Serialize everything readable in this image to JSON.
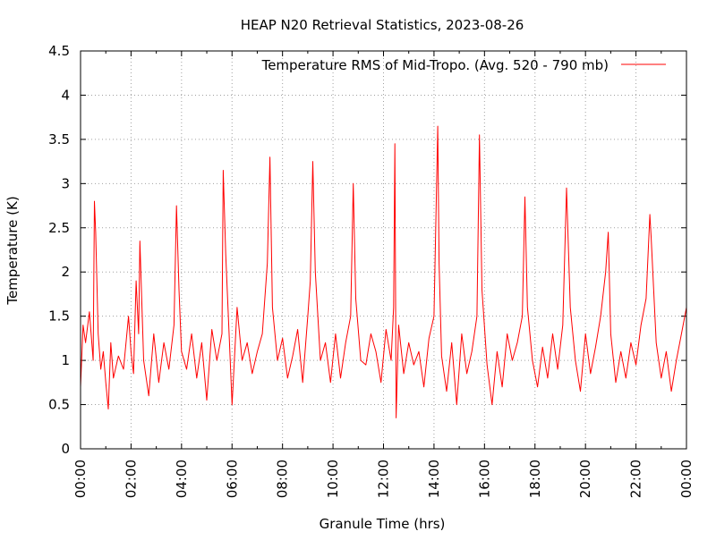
{
  "chart_data": {
    "type": "line",
    "title": "HEAP N20 Retrieval Statistics, 2023-08-26",
    "xlabel": "Granule Time (hrs)",
    "ylabel": "Temperature (K)",
    "xlim": [
      0,
      24
    ],
    "ylim": [
      0,
      4.5
    ],
    "grid": true,
    "legend_position": "top-right",
    "x_ticks": [
      "00:00",
      "02:00",
      "04:00",
      "06:00",
      "08:00",
      "10:00",
      "12:00",
      "14:00",
      "16:00",
      "18:00",
      "20:00",
      "22:00",
      "00:00"
    ],
    "y_ticks": [
      "0",
      "0.5",
      "1",
      "1.5",
      "2",
      "2.5",
      "3",
      "3.5",
      "4",
      "4.5"
    ],
    "series": [
      {
        "name": "Temperature RMS of Mid-Tropo. (Avg. 520 - 790 mb)",
        "color": "#ff0000",
        "x": [
          0.0,
          0.1,
          0.2,
          0.35,
          0.5,
          0.55,
          0.6,
          0.7,
          0.8,
          0.9,
          1.0,
          1.1,
          1.2,
          1.3,
          1.5,
          1.7,
          1.9,
          2.0,
          2.1,
          2.2,
          2.3,
          2.35,
          2.5,
          2.7,
          2.9,
          3.1,
          3.3,
          3.5,
          3.7,
          3.8,
          3.9,
          4.0,
          4.2,
          4.4,
          4.6,
          4.8,
          5.0,
          5.2,
          5.4,
          5.6,
          5.65,
          5.75,
          5.9,
          6.0,
          6.2,
          6.4,
          6.6,
          6.8,
          7.0,
          7.2,
          7.4,
          7.5,
          7.6,
          7.8,
          8.0,
          8.2,
          8.4,
          8.6,
          8.8,
          9.0,
          9.1,
          9.2,
          9.3,
          9.5,
          9.7,
          9.9,
          10.1,
          10.3,
          10.5,
          10.7,
          10.8,
          10.9,
          11.1,
          11.3,
          11.5,
          11.7,
          11.9,
          12.1,
          12.3,
          12.4,
          12.45,
          12.5,
          12.6,
          12.8,
          13.0,
          13.2,
          13.4,
          13.6,
          13.8,
          14.0,
          14.15,
          14.2,
          14.3,
          14.5,
          14.7,
          14.9,
          15.1,
          15.3,
          15.5,
          15.7,
          15.8,
          15.9,
          16.1,
          16.3,
          16.5,
          16.7,
          16.9,
          17.1,
          17.3,
          17.5,
          17.6,
          17.7,
          17.9,
          18.1,
          18.3,
          18.5,
          18.7,
          18.9,
          19.1,
          19.25,
          19.4,
          19.6,
          19.8,
          20.0,
          20.2,
          20.4,
          20.6,
          20.8,
          20.9,
          21.0,
          21.2,
          21.4,
          21.6,
          21.8,
          22.0,
          22.2,
          22.4,
          22.55,
          22.6,
          22.8,
          23.0,
          23.2,
          23.4,
          23.6,
          23.8,
          24.0
        ],
        "y": [
          0.7,
          1.4,
          1.2,
          1.55,
          1.0,
          2.8,
          2.45,
          1.3,
          0.9,
          1.1,
          0.75,
          0.45,
          1.2,
          0.8,
          1.05,
          0.9,
          1.5,
          1.1,
          0.85,
          1.9,
          1.3,
          2.35,
          1.0,
          0.6,
          1.3,
          0.75,
          1.2,
          0.9,
          1.4,
          2.75,
          1.8,
          1.1,
          0.9,
          1.3,
          0.8,
          1.2,
          0.55,
          1.35,
          1.0,
          1.3,
          3.15,
          2.2,
          1.2,
          0.5,
          1.6,
          1.0,
          1.2,
          0.85,
          1.1,
          1.3,
          2.1,
          3.3,
          1.6,
          1.0,
          1.25,
          0.8,
          1.05,
          1.35,
          0.75,
          1.5,
          1.9,
          3.25,
          2.0,
          1.0,
          1.2,
          0.75,
          1.3,
          0.8,
          1.2,
          1.5,
          3.0,
          1.7,
          1.0,
          0.95,
          1.3,
          1.1,
          0.75,
          1.35,
          1.0,
          1.6,
          3.45,
          0.35,
          1.4,
          0.85,
          1.2,
          0.95,
          1.1,
          0.7,
          1.25,
          1.5,
          3.65,
          2.1,
          1.05,
          0.65,
          1.2,
          0.5,
          1.3,
          0.85,
          1.1,
          1.5,
          3.55,
          1.8,
          0.95,
          0.5,
          1.1,
          0.7,
          1.3,
          1.0,
          1.2,
          1.5,
          2.85,
          1.6,
          1.0,
          0.7,
          1.15,
          0.8,
          1.3,
          0.9,
          1.4,
          2.95,
          1.6,
          1.0,
          0.65,
          1.3,
          0.85,
          1.15,
          1.5,
          2.0,
          2.45,
          1.3,
          0.75,
          1.1,
          0.8,
          1.2,
          0.95,
          1.4,
          1.7,
          2.65,
          2.4,
          1.2,
          0.8,
          1.1,
          0.65,
          1.0,
          1.3,
          1.6
        ]
      }
    ]
  }
}
